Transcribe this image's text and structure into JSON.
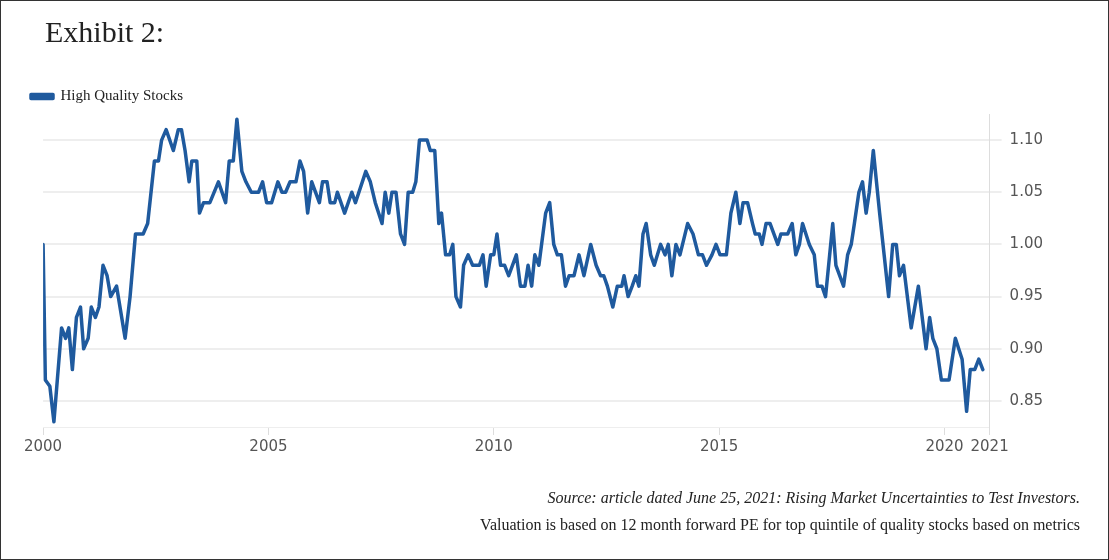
{
  "chart_data": {
    "type": "line",
    "title": "Exhibit 2:",
    "x": [
      2000.0,
      2000.05,
      2000.15,
      2000.24,
      2000.41,
      2000.5,
      2000.57,
      2000.65,
      2000.74,
      2000.83,
      2000.9,
      2001.0,
      2001.07,
      2001.16,
      2001.24,
      2001.33,
      2001.42,
      2001.5,
      2001.63,
      2001.82,
      2001.93,
      2002.05,
      2002.22,
      2002.32,
      2002.47,
      2002.56,
      2002.63,
      2002.73,
      2002.89,
      2003.0,
      2003.07,
      2003.15,
      2003.24,
      2003.3,
      2003.41,
      2003.47,
      2003.56,
      2003.7,
      2003.89,
      2004.05,
      2004.13,
      2004.22,
      2004.3,
      2004.41,
      2004.5,
      2004.62,
      2004.78,
      2004.87,
      2004.96,
      2005.07,
      2005.21,
      2005.3,
      2005.38,
      2005.48,
      2005.61,
      2005.7,
      2005.78,
      2005.87,
      2005.96,
      2006.13,
      2006.2,
      2006.3,
      2006.37,
      2006.47,
      2006.53,
      2006.69,
      2006.85,
      2006.93,
      2007.16,
      2007.26,
      2007.37,
      2007.52,
      2007.59,
      2007.67,
      2007.74,
      2007.83,
      2007.93,
      2008.02,
      2008.1,
      2008.2,
      2008.27,
      2008.35,
      2008.52,
      2008.59,
      2008.69,
      2008.78,
      2008.84,
      2008.93,
      2009.02,
      2009.09,
      2009.16,
      2009.26,
      2009.33,
      2009.43,
      2009.53,
      2009.68,
      2009.76,
      2009.83,
      2009.93,
      2010.0,
      2010.07,
      2010.15,
      2010.24,
      2010.33,
      2010.5,
      2010.59,
      2010.69,
      2010.76,
      2010.84,
      2010.91,
      2011.0,
      2011.15,
      2011.24,
      2011.33,
      2011.41,
      2011.5,
      2011.59,
      2011.67,
      2011.78,
      2011.89,
      2012.0,
      2012.15,
      2012.27,
      2012.37,
      2012.44,
      2012.52,
      2012.64,
      2012.74,
      2012.84,
      2012.89,
      2012.98,
      2013.07,
      2013.15,
      2013.22,
      2013.31,
      2013.38,
      2013.48,
      2013.56,
      2013.63,
      2013.7,
      2013.8,
      2013.87,
      2013.95,
      2014.04,
      2014.13,
      2014.3,
      2014.42,
      2014.54,
      2014.63,
      2014.72,
      2014.84,
      2014.93,
      2015.02,
      2015.16,
      2015.26,
      2015.37,
      2015.46,
      2015.53,
      2015.63,
      2015.74,
      2015.8,
      2015.89,
      2015.95,
      2016.04,
      2016.13,
      2016.3,
      2016.37,
      2016.52,
      2016.62,
      2016.7,
      2016.78,
      2016.85,
      2017.0,
      2017.11,
      2017.18,
      2017.28,
      2017.36,
      2017.52,
      2017.59,
      2017.76,
      2017.85,
      2017.93,
      2018.0,
      2018.1,
      2018.18,
      2018.26,
      2018.33,
      2018.42,
      2018.56,
      2018.76,
      2018.85,
      2018.93,
      2019.0,
      2019.09,
      2019.26,
      2019.42,
      2019.59,
      2019.67,
      2019.74,
      2019.83,
      2019.93,
      2020.1,
      2020.24,
      2020.39,
      2020.49,
      2020.57,
      2020.67,
      2020.76,
      2020.85
    ],
    "series": [
      {
        "name": "High Quality Stocks",
        "color": "#1f5a9e",
        "values": [
          1.0,
          0.87,
          0.864,
          0.83,
          0.92,
          0.91,
          0.92,
          0.88,
          0.93,
          0.94,
          0.9,
          0.91,
          0.94,
          0.93,
          0.94,
          0.98,
          0.97,
          0.95,
          0.96,
          0.91,
          0.95,
          1.01,
          1.01,
          1.02,
          1.08,
          1.08,
          1.1,
          1.11,
          1.09,
          1.11,
          1.11,
          1.09,
          1.06,
          1.08,
          1.08,
          1.03,
          1.04,
          1.04,
          1.06,
          1.04,
          1.08,
          1.08,
          1.12,
          1.07,
          1.06,
          1.05,
          1.05,
          1.06,
          1.04,
          1.04,
          1.06,
          1.05,
          1.05,
          1.06,
          1.06,
          1.08,
          1.07,
          1.03,
          1.06,
          1.04,
          1.06,
          1.06,
          1.04,
          1.04,
          1.05,
          1.03,
          1.05,
          1.04,
          1.07,
          1.06,
          1.04,
          1.02,
          1.05,
          1.03,
          1.05,
          1.05,
          1.01,
          1.0,
          1.05,
          1.05,
          1.06,
          1.1,
          1.1,
          1.09,
          1.09,
          1.02,
          1.03,
          0.99,
          0.99,
          1.0,
          0.95,
          0.94,
          0.98,
          0.99,
          0.98,
          0.98,
          0.99,
          0.96,
          0.99,
          0.99,
          1.01,
          0.98,
          0.98,
          0.97,
          0.99,
          0.96,
          0.96,
          0.98,
          0.96,
          0.99,
          0.98,
          1.03,
          1.04,
          1.0,
          0.99,
          0.99,
          0.96,
          0.97,
          0.97,
          0.99,
          0.97,
          1.0,
          0.98,
          0.97,
          0.97,
          0.96,
          0.94,
          0.96,
          0.96,
          0.97,
          0.95,
          0.96,
          0.97,
          0.96,
          1.01,
          1.02,
          0.99,
          0.98,
          0.99,
          1.0,
          0.99,
          1.0,
          0.97,
          1.0,
          0.99,
          1.02,
          1.01,
          0.99,
          0.99,
          0.98,
          0.99,
          1.0,
          0.99,
          0.99,
          1.03,
          1.05,
          1.02,
          1.04,
          1.04,
          1.02,
          1.01,
          1.01,
          1.0,
          1.02,
          1.02,
          1.0,
          1.01,
          1.01,
          1.02,
          0.99,
          1.0,
          1.02,
          1.0,
          0.99,
          0.96,
          0.96,
          0.95,
          1.02,
          0.98,
          0.96,
          0.99,
          1.0,
          1.02,
          1.05,
          1.06,
          1.03,
          1.05,
          1.09,
          1.03,
          0.95,
          1.0,
          1.0,
          0.97,
          0.98,
          0.92,
          0.96,
          0.9,
          0.93,
          0.91,
          0.9,
          0.87,
          0.87,
          0.91,
          0.89,
          0.84,
          0.88,
          0.88,
          0.89,
          0.88
        ]
      }
    ],
    "xlim": [
      2000,
      2021
    ],
    "xticks": [
      2000,
      2005,
      2010,
      2015,
      2020,
      2021
    ],
    "ylim": [
      0.825,
      1.125
    ],
    "yticks": [
      {
        "value": 0.85,
        "label": "0.85"
      },
      {
        "value": 0.9,
        "label": "0.90"
      },
      {
        "value": 0.95,
        "label": "0.95"
      },
      {
        "value": 1.0,
        "label": "1.00"
      },
      {
        "value": 1.05,
        "label": "1.05"
      },
      {
        "value": 1.1,
        "label": "1.10"
      }
    ],
    "grid": "y",
    "legend": "top left",
    "marker": "none",
    "line_style": "solid",
    "annotations": [
      "Source: article dated June 25, 2021: Rising Market Uncertainties to Test Investors.",
      "Valuation is based on 12 month forward PE for top quintile of quality stocks based on metrics"
    ]
  }
}
